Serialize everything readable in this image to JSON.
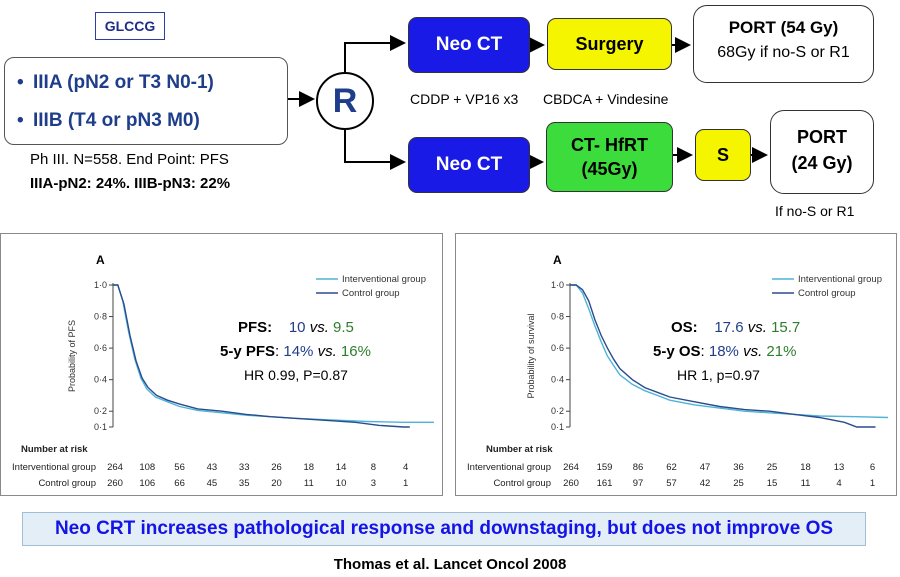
{
  "header": {
    "group_tag": "GLCCG",
    "stage_items": [
      "IIIA (pN2 or T3 N0-1)",
      "IIIB (T4 or pN3 M0)"
    ],
    "trial_info": "Ph III. N=558. End Point: PFS",
    "trial_stats": "IIIA-pN2: 24%. IIIB-pN3: 22%",
    "randomize_label": "R"
  },
  "flow": {
    "arm1": {
      "neo_ct": "Neo CT",
      "surgery": "Surgery",
      "port_title": "PORT (54 Gy)",
      "port_note": "68Gy if no-S or R1",
      "sub_left": "CDDP + VP16 x3",
      "sub_right": "CBDCA + Vindesine"
    },
    "arm2": {
      "neo_ct": "Neo CT",
      "hfrt_line1": "CT- HfRT",
      "hfrt_line2": "(45Gy)",
      "s_label": "S",
      "port_line1": "PORT",
      "port_line2": "(24 Gy)",
      "note": "If no-S  or R1"
    }
  },
  "colors": {
    "interventional": "#4fb3d9",
    "control": "#2a4c8c",
    "neo_box": "#1a1ae6",
    "surgery_box": "#f5f500",
    "hfrt_box": "#3bdc3b",
    "highlight_blue": "#1f3e8a",
    "highlight_green": "#2e7d2e"
  },
  "annotations": {
    "pfs": {
      "label1": "PFS:",
      "v1": "10",
      "vs1": "vs.",
      "v2": "9.5",
      "label2": "5-y PFS",
      "p1": "14%",
      "vs2": "vs.",
      "p2": "16%",
      "hr": "HR 0.99, P=0.87"
    },
    "os": {
      "label1": "OS:",
      "v1": "17.6",
      "vs1": "vs.",
      "v2": "15.7",
      "label2": "5-y OS",
      "p1": "18%",
      "vs2": "vs.",
      "p2": "21%",
      "hr": "HR 1, p=0.97"
    }
  },
  "chart_data": [
    {
      "type": "line",
      "panel_letter": "A",
      "ylabel": "Probability of PFS",
      "ylim": [
        0.1,
        1.0
      ],
      "yticks": [
        "1·0",
        "0·8",
        "0·6",
        "0·4",
        "0·2",
        "0·1"
      ],
      "legend": [
        "Interventional group",
        "Control group"
      ],
      "series": [
        {
          "name": "Interventional group",
          "points": [
            [
              0,
              1.0
            ],
            [
              0.4,
              1.0
            ],
            [
              0.8,
              0.9
            ],
            [
              1.3,
              0.7
            ],
            [
              1.8,
              0.53
            ],
            [
              2.3,
              0.41
            ],
            [
              2.8,
              0.34
            ],
            [
              3.5,
              0.29
            ],
            [
              4.5,
              0.26
            ],
            [
              5.5,
              0.23
            ],
            [
              7,
              0.205
            ],
            [
              9,
              0.19
            ],
            [
              11,
              0.175
            ],
            [
              13,
              0.165
            ],
            [
              15,
              0.155
            ],
            [
              18,
              0.145
            ],
            [
              21,
              0.135
            ],
            [
              24,
              0.13
            ],
            [
              26.5,
              0.13
            ]
          ]
        },
        {
          "name": "Control group",
          "points": [
            [
              0,
              1.0
            ],
            [
              0.4,
              1.0
            ],
            [
              0.9,
              0.88
            ],
            [
              1.4,
              0.68
            ],
            [
              1.9,
              0.52
            ],
            [
              2.4,
              0.41
            ],
            [
              2.9,
              0.35
            ],
            [
              3.6,
              0.3
            ],
            [
              4.5,
              0.27
            ],
            [
              5.5,
              0.245
            ],
            [
              7,
              0.215
            ],
            [
              9,
              0.2
            ],
            [
              11,
              0.18
            ],
            [
              13,
              0.165
            ],
            [
              15,
              0.155
            ],
            [
              18,
              0.14
            ],
            [
              20,
              0.13
            ],
            [
              22,
              0.11
            ],
            [
              24,
              0.1
            ],
            [
              24.5,
              0.1
            ]
          ]
        }
      ],
      "risk_table": {
        "title": "Number at risk",
        "rows": [
          {
            "label": "Interventional group",
            "values": [
              "264",
              "108",
              "56",
              "43",
              "33",
              "26",
              "18",
              "14",
              "8",
              "4"
            ]
          },
          {
            "label": "Control group",
            "values": [
              "260",
              "106",
              "66",
              "45",
              "35",
              "20",
              "11",
              "10",
              "3",
              "1"
            ]
          }
        ]
      }
    },
    {
      "type": "line",
      "panel_letter": "A",
      "ylabel": "Probability of survival",
      "ylim": [
        0.1,
        1.0
      ],
      "yticks": [
        "1·0",
        "0·8",
        "0·6",
        "0·4",
        "0·2",
        "0·1"
      ],
      "legend": [
        "Interventional group",
        "Control group"
      ],
      "series": [
        {
          "name": "Interventional group",
          "points": [
            [
              0,
              1.0
            ],
            [
              0.5,
              1.0
            ],
            [
              1,
              0.95
            ],
            [
              1.5,
              0.85
            ],
            [
              2,
              0.74
            ],
            [
              2.5,
              0.64
            ],
            [
              3,
              0.55
            ],
            [
              3.5,
              0.49
            ],
            [
              4,
              0.43
            ],
            [
              5,
              0.37
            ],
            [
              6,
              0.33
            ],
            [
              7,
              0.3
            ],
            [
              8,
              0.27
            ],
            [
              10,
              0.24
            ],
            [
              12,
              0.22
            ],
            [
              14,
              0.2
            ],
            [
              16,
              0.19
            ],
            [
              18,
              0.18
            ],
            [
              20,
              0.17
            ],
            [
              23,
              0.165
            ],
            [
              25.5,
              0.16
            ]
          ]
        },
        {
          "name": "Control group",
          "points": [
            [
              0,
              1.0
            ],
            [
              0.5,
              1.0
            ],
            [
              1,
              0.97
            ],
            [
              1.5,
              0.9
            ],
            [
              2,
              0.78
            ],
            [
              2.5,
              0.68
            ],
            [
              3,
              0.6
            ],
            [
              3.5,
              0.53
            ],
            [
              4,
              0.47
            ],
            [
              5,
              0.4
            ],
            [
              6,
              0.35
            ],
            [
              7,
              0.32
            ],
            [
              8,
              0.29
            ],
            [
              10,
              0.26
            ],
            [
              12,
              0.23
            ],
            [
              14,
              0.21
            ],
            [
              16,
              0.2
            ],
            [
              18,
              0.18
            ],
            [
              20,
              0.16
            ],
            [
              22,
              0.13
            ],
            [
              23,
              0.1
            ],
            [
              24.5,
              0.1
            ]
          ]
        }
      ],
      "risk_table": {
        "title": "Number at risk",
        "rows": [
          {
            "label": "Interventional group",
            "values": [
              "264",
              "159",
              "86",
              "62",
              "47",
              "36",
              "25",
              "18",
              "13",
              "6"
            ]
          },
          {
            "label": "Control group",
            "values": [
              "260",
              "161",
              "97",
              "57",
              "42",
              "25",
              "15",
              "11",
              "4",
              "1"
            ]
          }
        ]
      }
    }
  ],
  "footer": {
    "conclusion": "Neo CRT increases pathological response and downstaging, but does not improve OS",
    "citation": "Thomas et al. Lancet Oncol 2008"
  }
}
